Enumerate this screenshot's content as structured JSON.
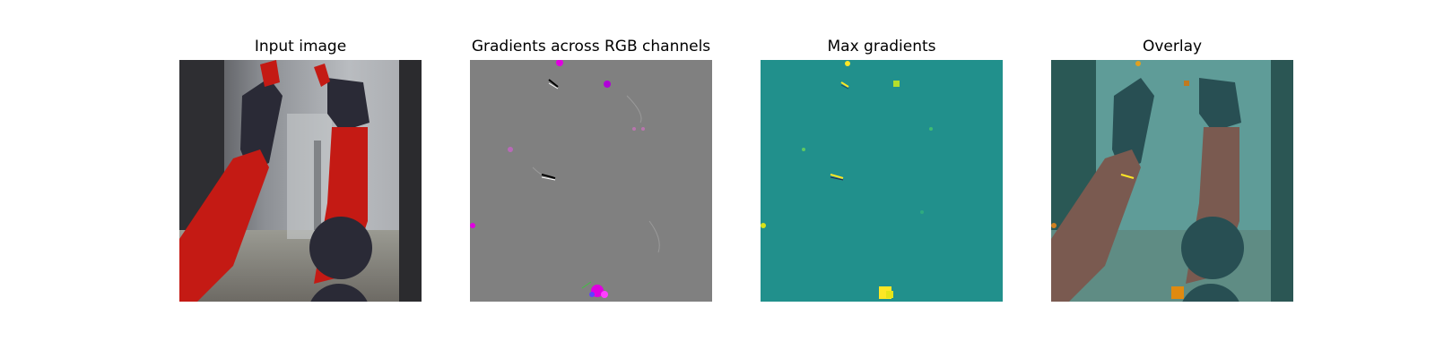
{
  "figure": {
    "panels": [
      {
        "title": "Input image"
      },
      {
        "title": "Gradients across RGB channels"
      },
      {
        "title": "Max gradients"
      },
      {
        "title": "Overlay"
      }
    ]
  },
  "colors": {
    "gradient_background": "#808080",
    "max_gradient_background": "#21908c",
    "highlight_yellow": "#fde725",
    "highlight_magenta": "#e000e0",
    "robot_red": "#c41a14",
    "robot_dark": "#2a2a36",
    "overlay_tint": "#2f7c78"
  }
}
